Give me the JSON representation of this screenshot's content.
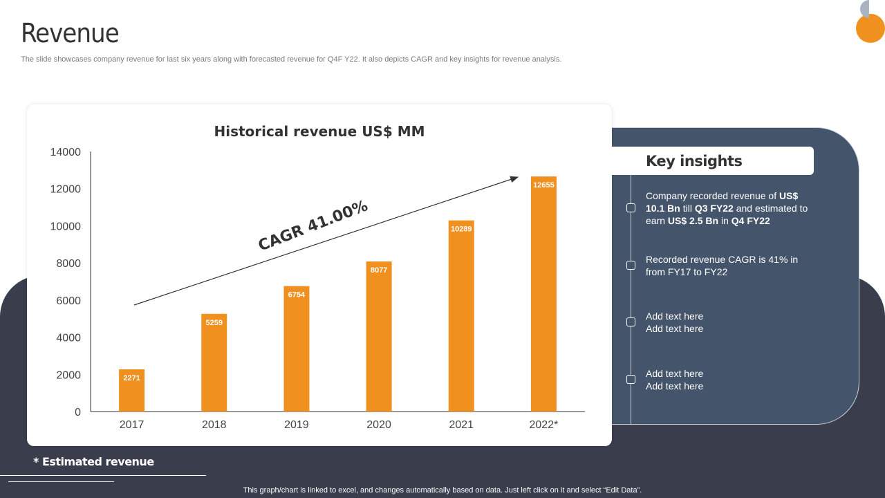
{
  "page": {
    "title": "Revenue",
    "subtitle": "The slide showcases company revenue for last six years along with forecasted revenue for Q4F Y22. It also depicts CAGR and key insights for revenue analysis."
  },
  "chart_data": {
    "type": "bar",
    "title": "Historical revenue US$ MM",
    "categories": [
      "2017",
      "2018",
      "2019",
      "2020",
      "2021",
      "2022*"
    ],
    "values": [
      2271,
      5259,
      6754,
      8077,
      10289,
      12655
    ],
    "ylim": [
      0,
      14000
    ],
    "yticks": [
      0,
      2000,
      4000,
      6000,
      8000,
      10000,
      12000,
      14000
    ],
    "annotation": "CAGR 41.00%",
    "bar_color": "#f0901e",
    "grid": false
  },
  "insights": {
    "header": "Key insights",
    "items": [
      {
        "parts": [
          {
            "text": "Company recorded revenue of ",
            "bold": false
          },
          {
            "text": "US$ 10.1 Bn",
            "bold": true
          },
          {
            "text": " till ",
            "bold": false
          },
          {
            "text": "Q3 FY22",
            "bold": true
          },
          {
            "text": " and estimated to earn ",
            "bold": false
          },
          {
            "text": "US$ 2.5 Bn",
            "bold": true
          },
          {
            "text": " in ",
            "bold": false
          },
          {
            "text": "Q4 FY22",
            "bold": true
          }
        ]
      },
      {
        "parts": [
          {
            "text": "Recorded revenue CAGR is 41% in from FY17 to FY22",
            "bold": false
          }
        ]
      },
      {
        "parts": [
          {
            "text": "Add text here Add text here",
            "bold": false
          }
        ]
      },
      {
        "parts": [
          {
            "text": "Add text here Add text here",
            "bold": false
          }
        ]
      }
    ]
  },
  "footer": {
    "estimated_note": "* Estimated revenue",
    "linked_note": "This graph/chart is linked to excel, and changes automatically based on data. Just left click on it and select “Edit Data”."
  },
  "colors": {
    "accent_orange": "#f0901e",
    "panel_blue": "#44546a",
    "dark_bg": "#393d4c"
  }
}
